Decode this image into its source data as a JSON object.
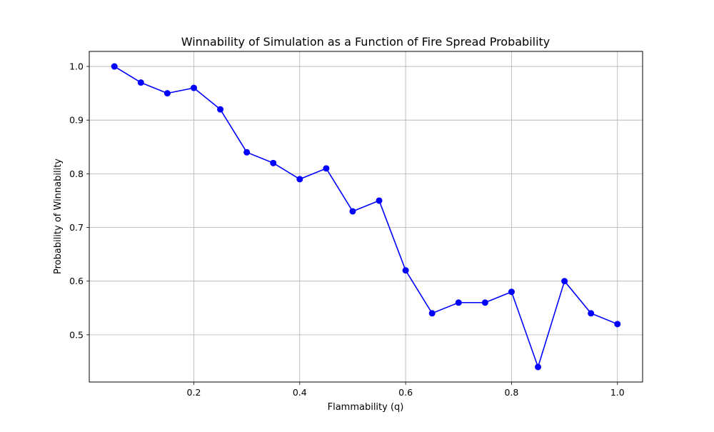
{
  "chart_data": {
    "type": "line",
    "title": "Winnability of Simulation as a Function of Fire Spread Probability",
    "xlabel": "Flammability (q)",
    "ylabel": "Probability of Winnability",
    "xlim": [
      0.0025,
      1.0475
    ],
    "ylim": [
      0.412,
      1.028
    ],
    "xticks": [
      0.2,
      0.4,
      0.6,
      0.8,
      1.0
    ],
    "xtick_labels": [
      "0.2",
      "0.4",
      "0.6",
      "0.8",
      "1.0"
    ],
    "yticks": [
      0.5,
      0.6,
      0.7,
      0.8,
      0.9,
      1.0
    ],
    "ytick_labels": [
      "0.5",
      "0.6",
      "0.7",
      "0.8",
      "0.9",
      "1.0"
    ],
    "grid": true,
    "line_color": "#0000ff",
    "x": [
      0.05,
      0.1,
      0.15,
      0.2,
      0.25,
      0.3,
      0.35,
      0.4,
      0.45,
      0.5,
      0.55,
      0.6,
      0.65,
      0.7,
      0.75,
      0.8,
      0.85,
      0.9,
      0.95,
      1.0
    ],
    "y": [
      1.0,
      0.97,
      0.95,
      0.96,
      0.92,
      0.84,
      0.82,
      0.79,
      0.81,
      0.73,
      0.75,
      0.62,
      0.54,
      0.56,
      0.56,
      0.58,
      0.44,
      0.6,
      0.54,
      0.52
    ]
  }
}
